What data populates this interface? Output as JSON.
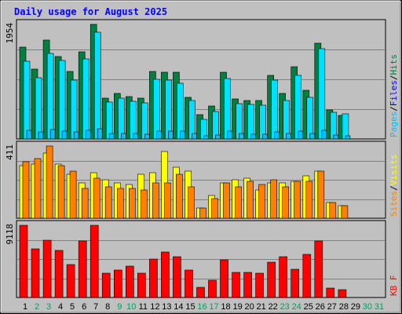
{
  "chart_data": {
    "type": "bar",
    "title": "Daily usage for August 2025",
    "days": [
      "1",
      "2",
      "3",
      "4",
      "5",
      "6",
      "7",
      "8",
      "9",
      "10",
      "11",
      "12",
      "13",
      "14",
      "15",
      "16",
      "17",
      "18",
      "19",
      "20",
      "21",
      "22",
      "23",
      "24",
      "25",
      "26",
      "27",
      "28",
      "29",
      "30",
      "31"
    ],
    "weekend_days": [
      "2",
      "3",
      "9",
      "10",
      "16",
      "17",
      "23",
      "24",
      "30",
      "31"
    ],
    "colors": {
      "hits": "#008040",
      "files": "#00e0ff",
      "pages": "#00c0ff",
      "visits": "#ffff00",
      "sites": "#ff8000",
      "kbytes": "#ff0000",
      "weekday_label": "#000000",
      "weekend_label": "#00a060",
      "title": "#0000ff"
    },
    "panels": [
      {
        "id": "hits",
        "ylim": [
          0,
          1954
        ],
        "max_label": "1954",
        "legend": [
          {
            "key": "pages",
            "label": "Pages",
            "color": "#00c0ff"
          },
          {
            "key": "files",
            "label": "Files",
            "color": "#0000ff"
          },
          {
            "key": "hits",
            "label": "Hits",
            "color": "#008040"
          }
        ],
        "series": [
          {
            "name": "Hits",
            "color": "#008040",
            "values": [
              1560,
              1190,
              1682,
              1402,
              1154,
              1492,
              1954,
              701,
              782,
              727,
              690,
              1149,
              1142,
              1135,
              704,
              417,
              557,
              1132,
              687,
              660,
              651,
              1086,
              774,
              1234,
              836,
              1638,
              500,
              400,
              0,
              0,
              0
            ]
          },
          {
            "name": "Files",
            "color": "#00e0ff",
            "values": [
              1320,
              1046,
              1460,
              1334,
              1000,
              1365,
              1814,
              630,
              692,
              640,
              618,
              1020,
              1000,
              955,
              652,
              330,
              472,
              1024,
              601,
              588,
              578,
              1004,
              658,
              1082,
              714,
              1538,
              456,
              428,
              0,
              0,
              0
            ]
          },
          {
            "name": "Pages",
            "color": "#00c0ff",
            "values": [
              150,
              120,
              160,
              140,
              120,
              150,
              180,
              90,
              100,
              90,
              80,
              130,
              130,
              130,
              90,
              60,
              70,
              130,
              90,
              80,
              80,
              120,
              90,
              140,
              100,
              150,
              70,
              60,
              0,
              0,
              0
            ]
          }
        ]
      },
      {
        "id": "visits",
        "ylim": [
          0,
          411
        ],
        "max_label": "411",
        "legend": [
          {
            "key": "sites",
            "label": "Sites",
            "color": "#ff8000"
          },
          {
            "key": "visits",
            "label": "Visits",
            "color": "#ffff00"
          }
        ],
        "series": [
          {
            "name": "Visits",
            "color": "#ffff00",
            "values": [
              300,
              310,
              370,
              310,
              250,
              200,
              260,
              220,
              200,
              190,
              250,
              260,
              380,
              290,
              270,
              60,
              130,
              200,
              220,
              230,
              160,
              200,
              200,
              210,
              240,
              270,
              90,
              70,
              0,
              0,
              0
            ]
          },
          {
            "name": "Sites",
            "color": "#ff8000",
            "values": [
              320,
              340,
              411,
              300,
              270,
              170,
              230,
              180,
              170,
              170,
              160,
              200,
              200,
              250,
              180,
              60,
              110,
              200,
              180,
              210,
              190,
              220,
              180,
              210,
              210,
              270,
              90,
              70,
              0,
              0,
              0
            ]
          }
        ]
      },
      {
        "id": "kbytes",
        "ylim": [
          0,
          9118
        ],
        "max_label": "9118",
        "legend": [
          {
            "key": "kbytes",
            "label": "KB F",
            "color": "#ff0000"
          }
        ],
        "series": [
          {
            "name": "KB F",
            "color": "#ff0000",
            "values": [
              9118,
              6150,
              7200,
              5950,
              4200,
              7100,
              9118,
              3050,
              3500,
              4000,
              3100,
              4900,
              5700,
              5200,
              3500,
              1300,
              2200,
              4800,
              3200,
              3200,
              3100,
              4500,
              5150,
              3600,
              5500,
              7100,
              1200,
              1000,
              0,
              0,
              0
            ]
          }
        ]
      }
    ]
  }
}
